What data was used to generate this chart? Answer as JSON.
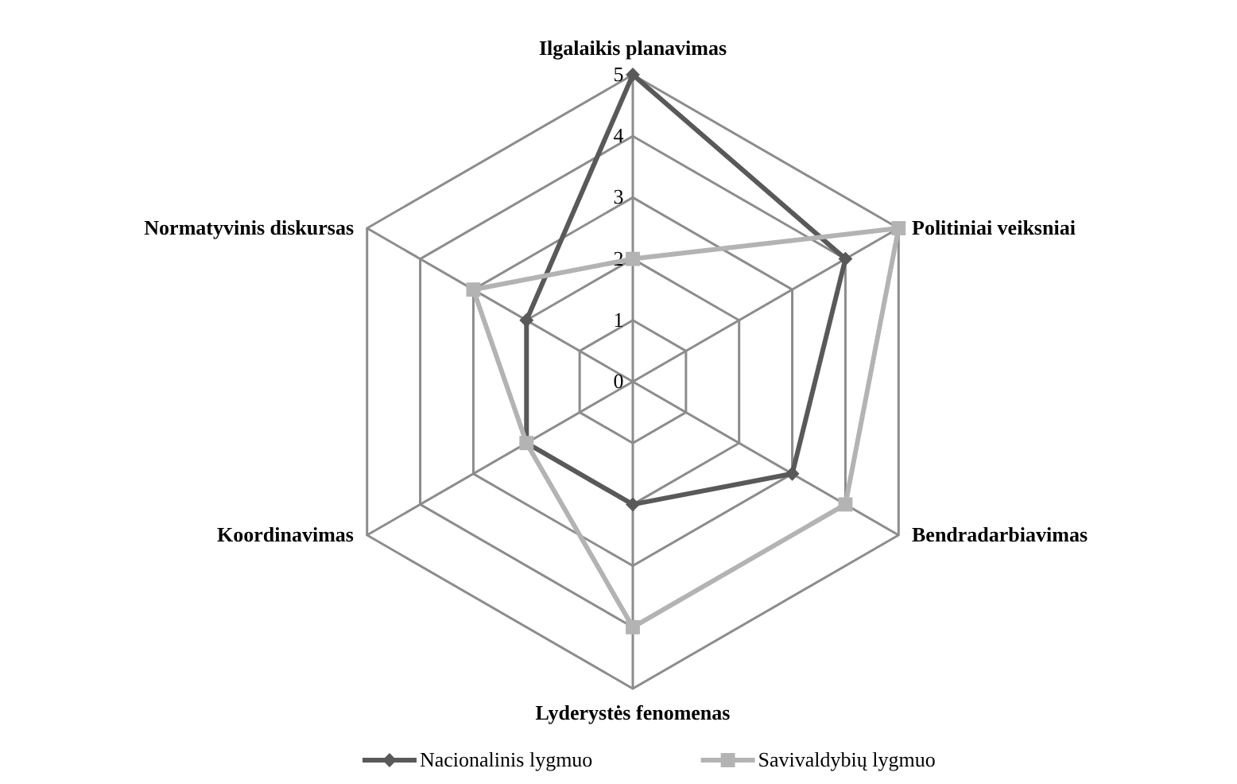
{
  "chart_data": {
    "type": "radar",
    "categories": [
      "Ilgalaikis planavimas",
      "Politiniai veiksniai",
      "Bendradarbiavimas",
      "Lyderystės fenomenas",
      "Koordinavimas",
      "Normatyvinis diskursas"
    ],
    "series": [
      {
        "name": "Nacionalinis lygmuo",
        "color": "#595959",
        "marker": "diamond",
        "values": [
          5,
          4,
          3,
          2,
          2,
          2
        ]
      },
      {
        "name": "Savivaldybių lygmuo",
        "color": "#b3b3b3",
        "marker": "square",
        "values": [
          2,
          5,
          4,
          4,
          2,
          3
        ]
      }
    ],
    "ylim": [
      0,
      5
    ],
    "yticks": [
      0,
      1,
      2,
      3,
      4,
      5
    ],
    "grid": true,
    "legend": "bottom"
  }
}
